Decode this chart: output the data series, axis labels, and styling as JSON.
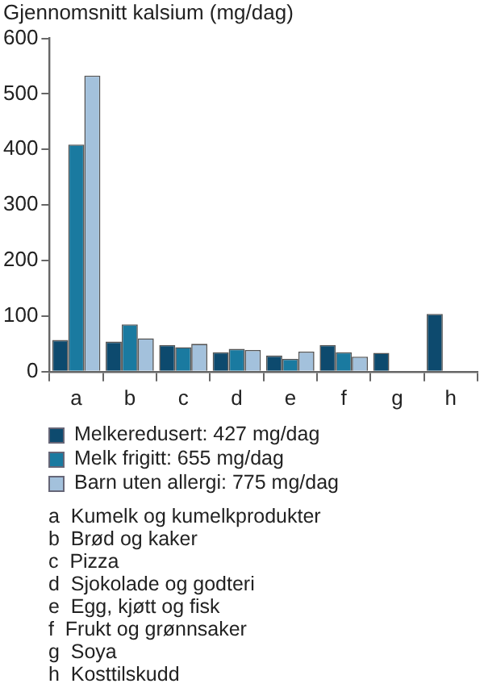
{
  "chart_data": {
    "type": "bar",
    "ylabel": "Gjennomsnitt kalsium (mg/dag)",
    "categories": [
      "a",
      "b",
      "c",
      "d",
      "e",
      "f",
      "g",
      "h"
    ],
    "series": [
      {
        "name": "Melkeredusert: 427 mg/dag",
        "color": "#0d4a6e",
        "values": [
          57,
          54,
          48,
          35,
          29,
          48,
          34,
          104
        ]
      },
      {
        "name": "Melk frigitt: 655 mg/dag",
        "color": "#1a7aa0",
        "values": [
          409,
          85,
          44,
          41,
          23,
          35,
          null,
          null
        ]
      },
      {
        "name": "Barn uten allergi: 775 mg/dag",
        "color": "#a3c1dc",
        "values": [
          533,
          60,
          50,
          39,
          36,
          27,
          null,
          null
        ]
      }
    ],
    "ylim": [
      0,
      600
    ],
    "yticks": [
      0,
      100,
      200,
      300,
      400,
      500,
      600
    ],
    "grid": false,
    "legend": "bottom",
    "annotations": [
      "a  Kumelk og kumelkprodukter",
      "b  Brød og kaker",
      "c  Pizza",
      "d  Sjokolade og godteri",
      "e  Egg, kjøtt og fisk",
      "f  Frukt og grønnsaker",
      "g  Soya",
      "h  Kosttilskudd"
    ]
  }
}
